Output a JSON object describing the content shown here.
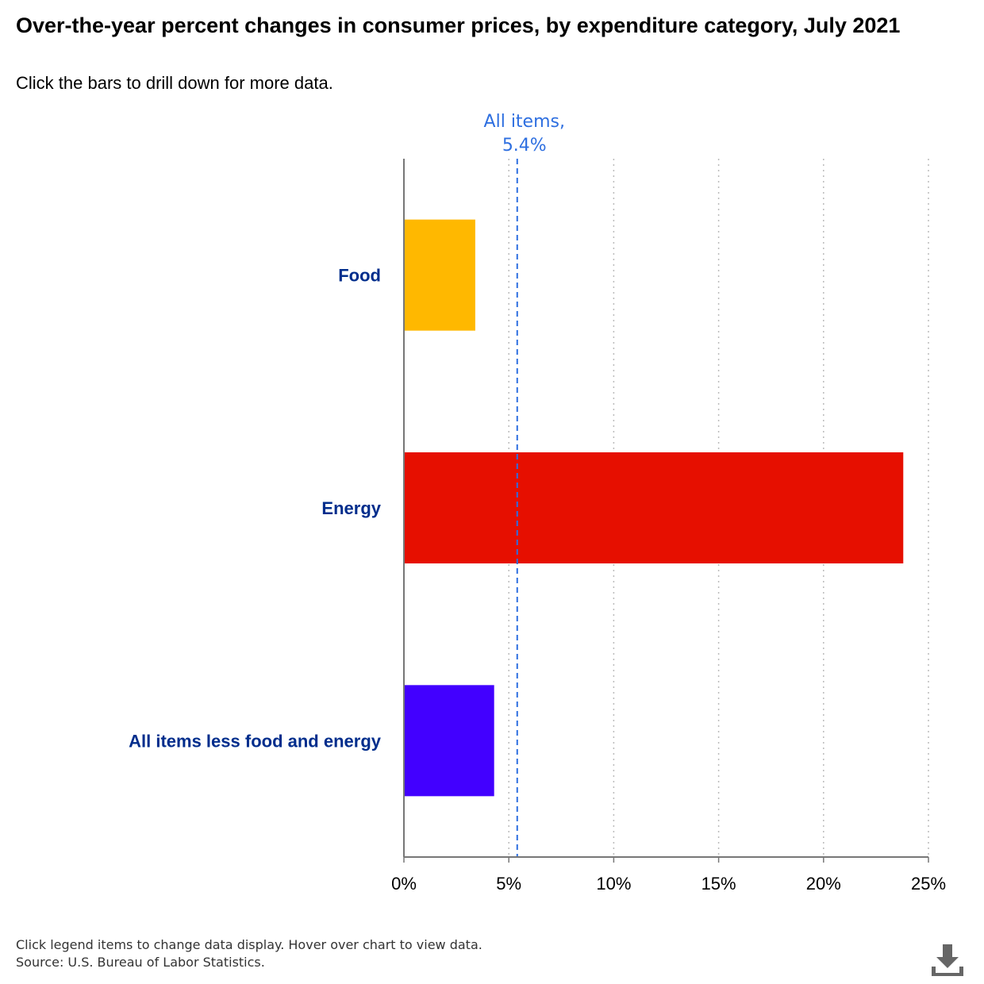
{
  "chart_data": {
    "type": "bar",
    "orientation": "horizontal",
    "title": "Over-the-year percent changes in consumer prices, by expenditure category, July 2021",
    "subtitle": "Click the bars to drill down for more data.",
    "categories": [
      "Food",
      "Energy",
      "All items less food and energy"
    ],
    "values": [
      3.4,
      23.8,
      4.3
    ],
    "colors": [
      "#FFB800",
      "#E60F00",
      "#4200FF"
    ],
    "xlim": [
      0,
      25
    ],
    "xticks": [
      0,
      5,
      10,
      15,
      20,
      25
    ],
    "tick_suffix": "%",
    "reference_line": {
      "value": 5.4,
      "label_line1": "All items,",
      "label_line2": "5.4%",
      "color": "#2E6FE0"
    },
    "grid": true,
    "category_label_color": "#002D8C"
  },
  "footer": {
    "line1": "Click legend items to change data display. Hover over chart to view data.",
    "line2": "Source: U.S. Bureau of Labor Statistics."
  },
  "icons": {
    "download": "download-icon"
  }
}
